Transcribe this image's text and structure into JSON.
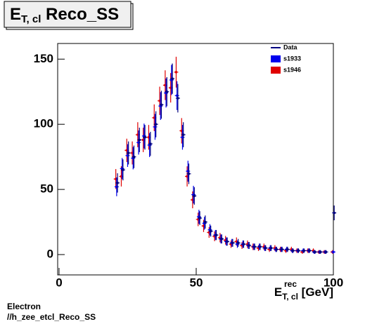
{
  "chart_data": {
    "type": "errorpoints",
    "title": {
      "main": "E",
      "sub": "T, cl",
      "rest": "Reco_SS"
    },
    "xlabel": {
      "main": "E",
      "sup": "rec",
      "sub": "T, cl",
      "rest": "[GeV]"
    },
    "footer": [
      "Electron",
      "//h_zee_etcl_Reco_SS"
    ],
    "x": [
      21,
      23,
      25,
      27,
      29,
      31,
      33,
      35,
      37,
      39,
      41,
      43,
      45,
      47,
      49,
      51,
      53,
      55,
      57,
      59,
      61,
      63,
      65,
      67,
      69,
      71,
      73,
      75,
      77,
      79,
      81,
      83,
      85,
      87,
      89,
      91,
      93,
      95,
      97,
      100
    ],
    "series": [
      {
        "name": "s1946",
        "color": "#e00000",
        "values": [
          58,
          60,
          80,
          78,
          92,
          88,
          90,
          105,
          118,
          130,
          128,
          140,
          95,
          60,
          42,
          27,
          22,
          17,
          14,
          13,
          11,
          8,
          10,
          7,
          8,
          6,
          5,
          6,
          4,
          5,
          4,
          3,
          4,
          3,
          2,
          3,
          3,
          2,
          2,
          2
        ]
      },
      {
        "name": "s1933",
        "color": "#0000ee",
        "values": [
          52,
          66,
          76,
          74,
          86,
          91,
          84,
          98,
          114,
          124,
          134,
          122,
          90,
          64,
          46,
          29,
          24,
          19,
          15,
          12,
          10,
          9,
          8,
          8,
          7,
          6,
          6,
          5,
          5,
          4,
          4,
          4,
          3,
          3,
          3,
          3,
          2,
          2,
          2,
          2
        ]
      },
      {
        "name": "Data",
        "color": "#000080",
        "values": [
          55,
          65,
          78,
          75,
          88,
          90,
          85,
          100,
          115,
          125,
          135,
          120,
          92,
          62,
          45,
          28,
          25,
          18,
          15,
          12,
          10,
          9,
          9,
          8,
          7,
          6,
          6,
          5,
          5,
          4,
          4,
          4,
          3,
          3,
          3,
          3,
          2,
          2,
          2,
          32
        ]
      }
    ],
    "xlim": [
      -0.5,
      100
    ],
    "ylim": [
      -15.6,
      162
    ],
    "xticks": [
      0,
      50,
      100
    ],
    "yticks": [
      0,
      50,
      100,
      150
    ]
  }
}
